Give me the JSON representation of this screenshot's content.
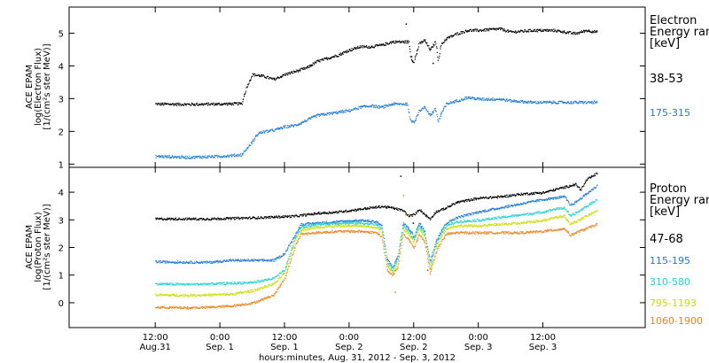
{
  "chart_data": [
    {
      "type": "scatter",
      "panel": "electron",
      "ylabel_lines": [
        "ACE EPAM",
        "log(Electron Flux)",
        "[1/(cm²s ster MeV)]"
      ],
      "ylim": [
        0.9,
        5.8
      ],
      "yticks": [
        1,
        2,
        3,
        4,
        5
      ],
      "legend_title": [
        "Electron",
        "Energy range",
        "[keV]"
      ],
      "series": [
        {
          "name": "38-53",
          "color": "#000000",
          "points": [
            [
              0,
              2.85
            ],
            [
              6,
              2.84
            ],
            [
              12,
              2.85
            ],
            [
              16,
              2.86
            ],
            [
              17,
              3.4
            ],
            [
              18,
              3.75
            ],
            [
              20,
              3.7
            ],
            [
              22,
              3.6
            ],
            [
              24,
              3.75
            ],
            [
              26,
              3.85
            ],
            [
              28,
              3.95
            ],
            [
              30,
              4.15
            ],
            [
              32,
              4.25
            ],
            [
              34,
              4.35
            ],
            [
              36,
              4.5
            ],
            [
              38,
              4.6
            ],
            [
              40,
              4.6
            ],
            [
              42,
              4.65
            ],
            [
              44,
              4.75
            ],
            [
              46,
              4.75
            ],
            [
              47,
              4.75
            ],
            [
              47.5,
              4.2
            ],
            [
              48,
              4.15
            ],
            [
              49,
              4.7
            ],
            [
              50,
              4.8
            ],
            [
              51,
              4.5
            ],
            [
              52,
              4.75
            ],
            [
              52.5,
              4.2
            ],
            [
              53,
              4.65
            ],
            [
              54,
              4.85
            ],
            [
              56,
              5.0
            ],
            [
              58,
              5.1
            ],
            [
              60,
              5.1
            ],
            [
              64,
              5.15
            ],
            [
              66,
              5.05
            ],
            [
              70,
              5.1
            ],
            [
              74,
              5.1
            ],
            [
              76,
              5.05
            ],
            [
              78,
              5.0
            ],
            [
              80,
              5.1
            ],
            [
              82,
              5.05
            ]
          ],
          "spikes": [
            [
              46.5,
              5.3
            ],
            [
              47.5,
              4.3
            ],
            [
              51.5,
              4.1
            ]
          ]
        },
        {
          "name": "175-315",
          "color": "#1e7ad6",
          "points": [
            [
              0,
              1.25
            ],
            [
              6,
              1.22
            ],
            [
              12,
              1.25
            ],
            [
              16,
              1.3
            ],
            [
              18,
              1.7
            ],
            [
              19,
              1.95
            ],
            [
              20,
              2.0
            ],
            [
              22,
              2.05
            ],
            [
              24,
              2.15
            ],
            [
              26,
              2.2
            ],
            [
              28,
              2.35
            ],
            [
              30,
              2.5
            ],
            [
              32,
              2.55
            ],
            [
              34,
              2.6
            ],
            [
              36,
              2.65
            ],
            [
              38,
              2.75
            ],
            [
              40,
              2.8
            ],
            [
              42,
              2.75
            ],
            [
              44,
              2.85
            ],
            [
              46,
              2.85
            ],
            [
              46.8,
              2.85
            ],
            [
              47.3,
              2.35
            ],
            [
              48,
              2.3
            ],
            [
              49,
              2.65
            ],
            [
              50,
              2.75
            ],
            [
              51,
              2.5
            ],
            [
              52,
              2.7
            ],
            [
              52.5,
              2.3
            ],
            [
              53,
              2.55
            ],
            [
              54,
              2.85
            ],
            [
              56,
              2.95
            ],
            [
              58,
              3.05
            ],
            [
              60,
              3.0
            ],
            [
              64,
              3.0
            ],
            [
              66,
              2.95
            ],
            [
              70,
              2.9
            ],
            [
              74,
              2.9
            ],
            [
              78,
              2.9
            ],
            [
              82,
              2.9
            ]
          ],
          "spikes": []
        }
      ]
    },
    {
      "type": "scatter",
      "panel": "proton",
      "ylabel_lines": [
        "ACE EPAM",
        "log(Proton Flux)",
        "[1/(cm²s ster MeV)]"
      ],
      "ylim": [
        -0.9,
        4.9
      ],
      "yticks": [
        0,
        1,
        2,
        3,
        4
      ],
      "legend_title": [
        "Proton",
        "Energy range",
        "[keV]"
      ],
      "series": [
        {
          "name": "47-68",
          "color": "#000000",
          "points": [
            [
              0,
              3.05
            ],
            [
              10,
              3.05
            ],
            [
              20,
              3.1
            ],
            [
              26,
              3.15
            ],
            [
              30,
              3.25
            ],
            [
              34,
              3.3
            ],
            [
              38,
              3.4
            ],
            [
              42,
              3.5
            ],
            [
              44,
              3.45
            ],
            [
              46,
              3.35
            ],
            [
              47,
              3.15
            ],
            [
              48,
              3.2
            ],
            [
              49,
              3.4
            ],
            [
              50,
              3.2
            ],
            [
              51,
              3.05
            ],
            [
              52,
              3.3
            ],
            [
              54,
              3.45
            ],
            [
              56,
              3.65
            ],
            [
              60,
              3.8
            ],
            [
              64,
              3.85
            ],
            [
              68,
              3.95
            ],
            [
              72,
              4.0
            ],
            [
              74,
              4.1
            ],
            [
              76,
              4.2
            ],
            [
              78,
              4.3
            ],
            [
              79,
              4.1
            ],
            [
              80,
              4.45
            ],
            [
              82,
              4.7
            ]
          ],
          "spikes": [
            [
              45.5,
              4.6
            ],
            [
              47.8,
              2.9
            ]
          ]
        },
        {
          "name": "115-195",
          "color": "#1e7ad6",
          "points": [
            [
              0,
              1.5
            ],
            [
              6,
              1.48
            ],
            [
              10,
              1.48
            ],
            [
              14,
              1.55
            ],
            [
              18,
              1.55
            ],
            [
              22,
              1.55
            ],
            [
              24,
              1.8
            ],
            [
              26,
              2.5
            ],
            [
              27,
              2.85
            ],
            [
              30,
              2.9
            ],
            [
              34,
              2.95
            ],
            [
              38,
              3.0
            ],
            [
              41,
              2.95
            ],
            [
              42,
              2.8
            ],
            [
              43,
              1.6
            ],
            [
              44,
              1.3
            ],
            [
              45,
              1.7
            ],
            [
              46,
              2.9
            ],
            [
              47,
              2.7
            ],
            [
              48,
              2.4
            ],
            [
              49,
              2.9
            ],
            [
              50,
              2.6
            ],
            [
              51,
              1.5
            ],
            [
              52,
              2.2
            ],
            [
              53,
              2.6
            ],
            [
              54,
              2.9
            ],
            [
              56,
              3.1
            ],
            [
              60,
              3.3
            ],
            [
              64,
              3.45
            ],
            [
              68,
              3.6
            ],
            [
              72,
              3.75
            ],
            [
              74,
              3.8
            ],
            [
              76,
              3.85
            ],
            [
              77,
              3.55
            ],
            [
              78,
              3.65
            ],
            [
              80,
              3.95
            ],
            [
              82,
              4.25
            ]
          ],
          "spikes": [
            [
              50.5,
              1.2
            ]
          ]
        },
        {
          "name": "310-580",
          "color": "#22d3d3",
          "points": [
            [
              0,
              0.7
            ],
            [
              6,
              0.68
            ],
            [
              10,
              0.7
            ],
            [
              14,
              0.72
            ],
            [
              18,
              0.75
            ],
            [
              22,
              0.9
            ],
            [
              24,
              1.2
            ],
            [
              26,
              2.4
            ],
            [
              27,
              2.75
            ],
            [
              30,
              2.85
            ],
            [
              34,
              2.9
            ],
            [
              38,
              2.9
            ],
            [
              41,
              2.85
            ],
            [
              42,
              2.7
            ],
            [
              43,
              1.5
            ],
            [
              44,
              1.2
            ],
            [
              45,
              1.6
            ],
            [
              46,
              2.8
            ],
            [
              47,
              2.6
            ],
            [
              48,
              2.3
            ],
            [
              49,
              2.8
            ],
            [
              50,
              2.5
            ],
            [
              51,
              1.3
            ],
            [
              52,
              2.1
            ],
            [
              53,
              2.5
            ],
            [
              54,
              2.8
            ],
            [
              56,
              2.95
            ],
            [
              60,
              3.0
            ],
            [
              64,
              3.1
            ],
            [
              68,
              3.2
            ],
            [
              72,
              3.3
            ],
            [
              74,
              3.4
            ],
            [
              76,
              3.45
            ],
            [
              77,
              3.15
            ],
            [
              78,
              3.25
            ],
            [
              80,
              3.5
            ],
            [
              82,
              3.75
            ]
          ],
          "spikes": []
        },
        {
          "name": "795-1193",
          "color": "#c8e000",
          "points": [
            [
              0,
              0.3
            ],
            [
              6,
              0.28
            ],
            [
              10,
              0.3
            ],
            [
              14,
              0.32
            ],
            [
              18,
              0.45
            ],
            [
              22,
              0.7
            ],
            [
              24,
              1.1
            ],
            [
              26,
              2.3
            ],
            [
              27,
              2.65
            ],
            [
              30,
              2.75
            ],
            [
              34,
              2.8
            ],
            [
              38,
              2.8
            ],
            [
              41,
              2.75
            ],
            [
              42,
              2.6
            ],
            [
              43,
              1.4
            ],
            [
              44,
              1.1
            ],
            [
              45,
              1.5
            ],
            [
              46,
              2.7
            ],
            [
              47,
              2.5
            ],
            [
              48,
              2.2
            ],
            [
              49,
              2.7
            ],
            [
              50,
              2.4
            ],
            [
              51,
              1.2
            ],
            [
              52,
              2.0
            ],
            [
              53,
              2.4
            ],
            [
              54,
              2.7
            ],
            [
              56,
              2.8
            ],
            [
              60,
              2.8
            ],
            [
              64,
              2.85
            ],
            [
              68,
              2.9
            ],
            [
              72,
              3.0
            ],
            [
              74,
              3.1
            ],
            [
              76,
              3.15
            ],
            [
              77,
              2.85
            ],
            [
              78,
              2.95
            ],
            [
              80,
              3.15
            ],
            [
              82,
              3.35
            ]
          ],
          "spikes": []
        },
        {
          "name": "1060-1900",
          "color": "#f08218",
          "points": [
            [
              0,
              -0.15
            ],
            [
              6,
              -0.17
            ],
            [
              10,
              -0.15
            ],
            [
              14,
              -0.1
            ],
            [
              18,
              0.0
            ],
            [
              22,
              0.3
            ],
            [
              24,
              0.9
            ],
            [
              26,
              2.1
            ],
            [
              27,
              2.5
            ],
            [
              30,
              2.55
            ],
            [
              34,
              2.6
            ],
            [
              38,
              2.6
            ],
            [
              41,
              2.55
            ],
            [
              42,
              2.4
            ],
            [
              43,
              1.2
            ],
            [
              44,
              1.0
            ],
            [
              45,
              1.3
            ],
            [
              46,
              2.5
            ],
            [
              47,
              2.3
            ],
            [
              48,
              2.0
            ],
            [
              49,
              2.5
            ],
            [
              50,
              2.2
            ],
            [
              51,
              1.05
            ],
            [
              52,
              1.8
            ],
            [
              53,
              2.2
            ],
            [
              54,
              2.5
            ],
            [
              56,
              2.55
            ],
            [
              60,
              2.55
            ],
            [
              64,
              2.55
            ],
            [
              68,
              2.55
            ],
            [
              72,
              2.6
            ],
            [
              74,
              2.65
            ],
            [
              76,
              2.7
            ],
            [
              77,
              2.45
            ],
            [
              78,
              2.55
            ],
            [
              80,
              2.7
            ],
            [
              82,
              2.85
            ]
          ],
          "spikes": [
            [
              46,
              3.9
            ],
            [
              47,
              3.2
            ],
            [
              44.5,
              0.4
            ]
          ]
        }
      ]
    }
  ],
  "x_axis": {
    "range_hours": [
      -16,
      91
    ],
    "ticks": [
      {
        "hour": 0,
        "time": "12:00",
        "day": "Aug.31"
      },
      {
        "hour": 12,
        "time": "0:00",
        "day": "Sep. 1"
      },
      {
        "hour": 24,
        "time": "12:00",
        "day": "Sep. 1"
      },
      {
        "hour": 36,
        "time": "0:00",
        "day": "Sep. 2"
      },
      {
        "hour": 48,
        "time": "12:00",
        "day": "Sep. 2"
      },
      {
        "hour": 60,
        "time": "0:00",
        "day": "Sep. 3"
      },
      {
        "hour": 72,
        "time": "12:00",
        "day": "Sep. 3"
      }
    ],
    "xlabel": "hours:minutes, Aug. 31, 2012 - Sep.  3, 2012"
  }
}
